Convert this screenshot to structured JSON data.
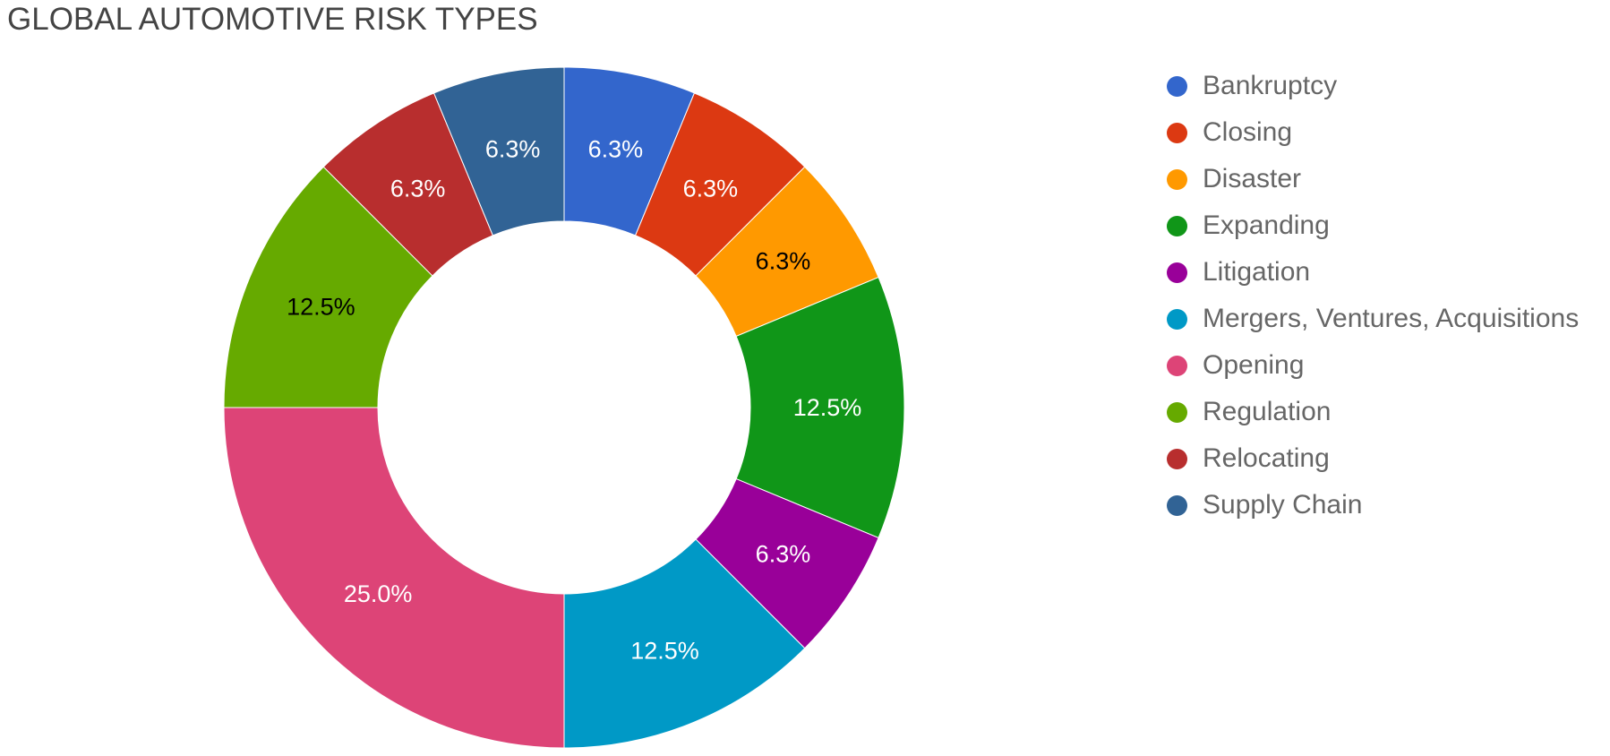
{
  "chart_data": {
    "type": "pie",
    "variant": "donut",
    "title": "GLOBAL AUTOMOTIVE RISK TYPES",
    "legend_position": "right",
    "categories": [
      "Bankruptcy",
      "Closing",
      "Disaster",
      "Expanding",
      "Litigation",
      "Mergers, Ventures, Acquisitions",
      "Opening",
      "Regulation",
      "Relocating",
      "Supply Chain"
    ],
    "values": [
      6.25,
      6.25,
      6.25,
      12.5,
      6.25,
      12.5,
      25.0,
      12.5,
      6.25,
      6.25
    ],
    "data_labels": [
      "6.3%",
      "6.3%",
      "6.3%",
      "12.5%",
      "6.3%",
      "12.5%",
      "25.0%",
      "12.5%",
      "6.3%",
      "6.3%"
    ],
    "colors": [
      "#3366cc",
      "#dc3912",
      "#ff9900",
      "#109618",
      "#990099",
      "#0099c6",
      "#dd4477",
      "#66aa00",
      "#b82e2e",
      "#316395"
    ],
    "label_colors": [
      "#ffffff",
      "#ffffff",
      "#000000",
      "#ffffff",
      "#ffffff",
      "#ffffff",
      "#ffffff",
      "#000000",
      "#ffffff",
      "#ffffff"
    ]
  }
}
